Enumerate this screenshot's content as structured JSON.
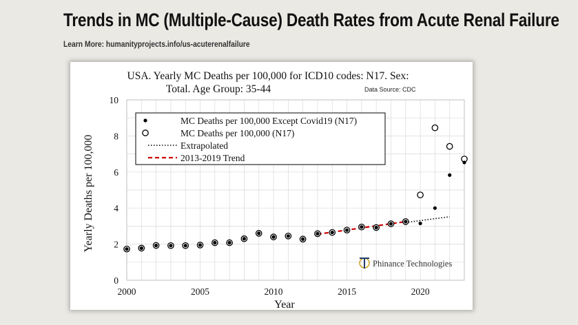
{
  "header": {
    "title": "Trends in MC (Multiple-Cause) Death Rates from Acute Renal Failure",
    "learn_more": "Learn More: humanityprojects.info/us-acuterenalfailure"
  },
  "chart_data": {
    "type": "scatter",
    "title_line1": "USA. Yearly MC Deaths per 100,000 for ICD10 codes: N17. Sex:",
    "title_line2": "Total. Age Group: 35-44",
    "data_source": "Data Source: CDC",
    "xlabel": "Year",
    "ylabel": "Yearly Deaths per 100,000",
    "xlim": [
      2000,
      2023
    ],
    "ylim": [
      0,
      10
    ],
    "x_ticks": [
      2000,
      2005,
      2010,
      2015,
      2020
    ],
    "y_ticks": [
      0,
      2,
      4,
      6,
      8,
      10
    ],
    "grid": true,
    "legend_position": "upper-left",
    "watermark": "Phinance Technologies",
    "colors": {
      "trend": "#cc0000",
      "points": "#000000",
      "extrapolated": "#000000"
    },
    "series": [
      {
        "name": "MC Deaths per 100,000 Except Covid19 (N17)",
        "marker": "filled-dot",
        "x": [
          2000,
          2001,
          2002,
          2003,
          2004,
          2005,
          2006,
          2007,
          2008,
          2009,
          2010,
          2011,
          2012,
          2013,
          2014,
          2015,
          2016,
          2017,
          2018,
          2019,
          2020,
          2021,
          2022,
          2023
        ],
        "y": [
          1.73,
          1.78,
          1.93,
          1.92,
          1.92,
          1.95,
          2.08,
          2.08,
          2.3,
          2.6,
          2.4,
          2.45,
          2.28,
          2.58,
          2.65,
          2.78,
          2.95,
          2.92,
          3.13,
          3.25,
          3.15,
          4.0,
          5.83,
          6.53
        ]
      },
      {
        "name": "MC Deaths per 100,000 (N17)",
        "marker": "open-circle",
        "x": [
          2000,
          2001,
          2002,
          2003,
          2004,
          2005,
          2006,
          2007,
          2008,
          2009,
          2010,
          2011,
          2012,
          2013,
          2014,
          2015,
          2016,
          2017,
          2018,
          2019,
          2020,
          2021,
          2022,
          2023
        ],
        "y": [
          1.73,
          1.78,
          1.93,
          1.92,
          1.92,
          1.95,
          2.08,
          2.08,
          2.3,
          2.6,
          2.4,
          2.45,
          2.28,
          2.58,
          2.65,
          2.78,
          2.95,
          2.92,
          3.13,
          3.25,
          4.73,
          8.45,
          7.42,
          6.72
        ]
      },
      {
        "name": "Extrapolated",
        "style": "dotted",
        "x": [
          2019,
          2022
        ],
        "y": [
          3.2,
          3.52
        ]
      },
      {
        "name": "2013-2019 Trend",
        "style": "dashed",
        "x": [
          2013,
          2019
        ],
        "y": [
          2.55,
          3.25
        ]
      }
    ]
  }
}
